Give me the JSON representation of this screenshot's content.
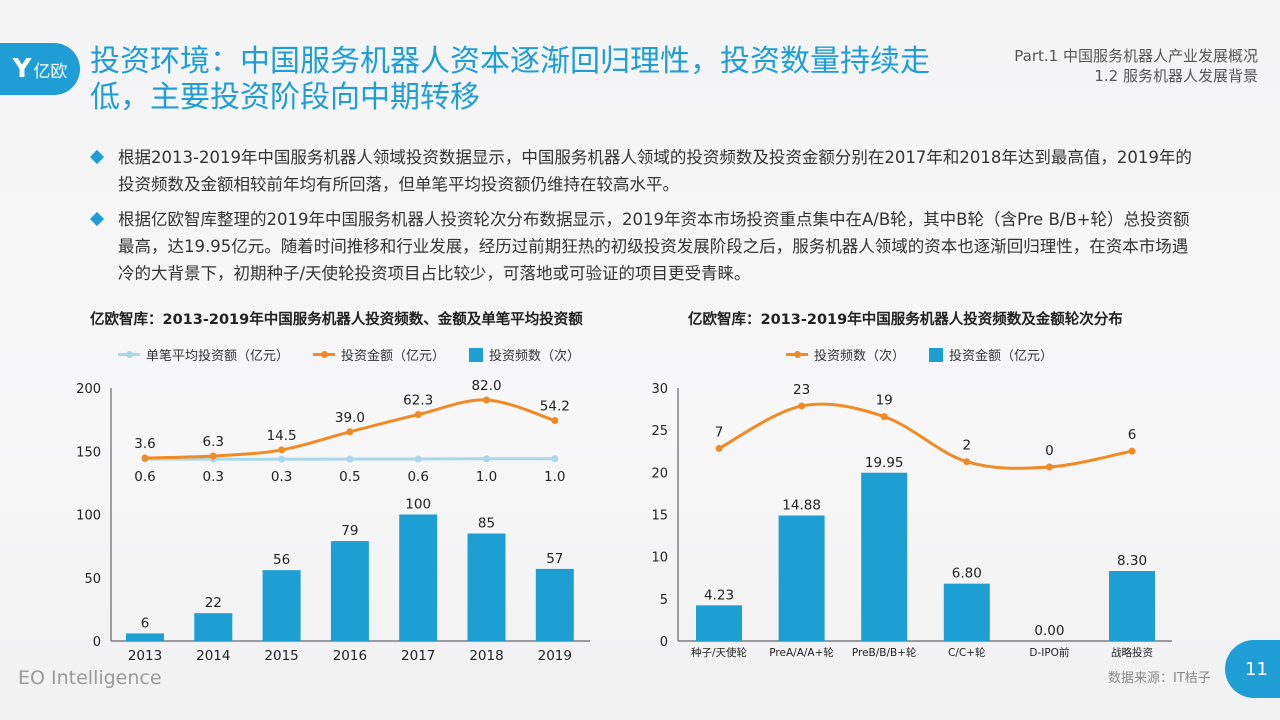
{
  "logo": {
    "mark": "Y",
    "text": "亿欧"
  },
  "header": {
    "title": "投资环境：中国服务机器人资本逐渐回归理性，投资数量持续走低，主要投资阶段向中期转移",
    "part": "Part.1 中国服务机器人产业发展概况",
    "section": "1.2 服务机器人发展背景"
  },
  "bullets": [
    "根据2013-2019年中国服务机器人领域投资数据显示，中国服务机器人领域的投资频数及投资金额分别在2017年和2018年达到最高值，2019年的投资频数及金额相较前年均有所回落，但单笔平均投资额仍维持在较高水平。",
    "根据亿欧智库整理的2019年中国服务机器人投资轮次分布数据显示，2019年资本市场投资重点集中在A/B轮，其中B轮（含Pre B/B+轮）总投资额最高，达19.95亿元。随着时间推移和行业发展，经历过前期狂热的初级投资发展阶段之后，服务机器人领域的资本也逐渐回归理性，在资本市场遇冷的大背景下，初期种子/天使轮投资项目占比较少，可落地或可验证的项目更受青睐。"
  ],
  "colors": {
    "accent": "#1f9ed6",
    "bar": "#1d9fd4",
    "orange": "#f08a24",
    "light_blue": "#a8d8ea"
  },
  "chart_data": [
    {
      "type": "bar+line",
      "title": "亿欧智库：2013-2019年中国服务机器人投资频数、金额及单笔平均投资额",
      "categories": [
        "2013",
        "2014",
        "2015",
        "2016",
        "2017",
        "2018",
        "2019"
      ],
      "ylim": [
        0,
        200
      ],
      "yticks": [
        "0",
        "50",
        "100",
        "150",
        "200"
      ],
      "legend_position": "top",
      "grid": false,
      "series": [
        {
          "name": "单笔平均投资额（亿元）",
          "kind": "line",
          "color": "#a8d8ea",
          "values": [
            0.6,
            0.3,
            0.3,
            0.5,
            0.6,
            1.0,
            1.0
          ],
          "labels": [
            "0.6",
            "0.3",
            "0.3",
            "0.5",
            "0.6",
            "1.0",
            "1.0"
          ]
        },
        {
          "name": "投资金额（亿元）",
          "kind": "line",
          "color": "#f08a24",
          "values": [
            3.6,
            6.3,
            14.5,
            39.0,
            62.3,
            82.0,
            54.2
          ],
          "labels": [
            "3.6",
            "6.3",
            "14.5",
            "39.0",
            "62.3",
            "82.0",
            "54.2"
          ]
        },
        {
          "name": "投资频数（次）",
          "kind": "bar",
          "color": "#1d9fd4",
          "values": [
            6,
            22,
            56,
            79,
            100,
            85,
            57
          ],
          "labels": [
            "6",
            "22",
            "56",
            "79",
            "100",
            "85",
            "57"
          ]
        }
      ]
    },
    {
      "type": "bar+line",
      "title": "亿欧智库：2013-2019年中国服务机器人投资频数及金额轮次分布",
      "categories": [
        "种子/天使轮",
        "PreA/A/A+轮",
        "PreB/B/B+轮",
        "C/C+轮",
        "D-IPO前",
        "战略投资"
      ],
      "ylim": [
        0,
        30
      ],
      "yticks": [
        "0",
        "5",
        "10",
        "15",
        "20",
        "25",
        "30"
      ],
      "legend_position": "top",
      "grid": false,
      "series": [
        {
          "name": "投资频数（次）",
          "kind": "line",
          "color": "#f08a24",
          "values": [
            7,
            23,
            19,
            2,
            0,
            6
          ],
          "labels": [
            "7",
            "23",
            "19",
            "2",
            "0",
            "6"
          ]
        },
        {
          "name": "投资金额（亿元）",
          "kind": "bar",
          "color": "#1d9fd4",
          "values": [
            4.23,
            14.88,
            19.95,
            6.8,
            0.0,
            8.3
          ],
          "labels": [
            "4.23",
            "14.88",
            "19.95",
            "6.80",
            "0.00",
            "8.30"
          ]
        }
      ]
    }
  ],
  "footer": {
    "brand": "EO Intelligence",
    "source": "数据来源：IT桔子",
    "page": "11"
  }
}
